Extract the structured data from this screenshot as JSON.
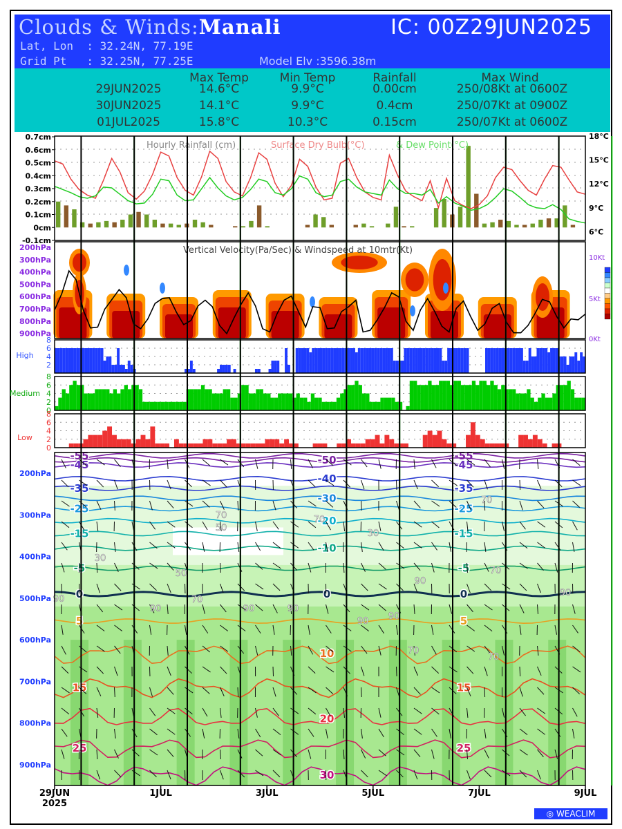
{
  "header": {
    "title_prefix": "Clouds & Winds:",
    "location": "Manali",
    "ic": "IC: 00Z29JUN2025",
    "latlon": "Lat, Lon  : 32.24N, 77.19E",
    "gridpt": "Grid Pt   : 32.25N, 77.25E",
    "elevation": "Model Elv :3596.38m"
  },
  "summary": {
    "columns": [
      "Max Temp",
      "Min Temp",
      "Rainfall",
      "Max Wind"
    ],
    "rows": [
      {
        "date": "29JUN2025",
        "max_temp": "14.6°C",
        "min_temp": "9.9°C",
        "rain": "0.00cm",
        "wind": "250/08Kt at 0600Z"
      },
      {
        "date": "30JUN2025",
        "max_temp": "14.1°C",
        "min_temp": "9.9°C",
        "rain": "0.4cm",
        "wind": "250/07Kt at 0900Z"
      },
      {
        "date": "01JUL2025",
        "max_temp": "15.8°C",
        "min_temp": "10.3°C",
        "rain": "0.15cm",
        "wind": "250/07Kt at 0600Z"
      }
    ]
  },
  "colors": {
    "rain_bar": "#6e9e2a",
    "rain_bar_dark": "#8b5a2b",
    "drybulb": "#e84040",
    "dewpoint": "#22cc22",
    "high_cloud": "#1f3cff",
    "medium_cloud": "#00cc00",
    "low_cloud": "#ee3333",
    "day_line": "#000000",
    "noon_line": "#22cc22"
  },
  "chart_data": [
    {
      "type": "bar",
      "name": "meteogram-rain-temp",
      "title": "Hourly Rainfall (cm)",
      "title2": "Surface Dry Bulb(°C)",
      "title3": "& Dew Point(°C)",
      "y_left_ticks": [
        "0.7cm",
        "0.6cm",
        "0.5cm",
        "0.4cm",
        "0.3cm",
        "0.2cm",
        "0.1cm",
        "0cm",
        "-0.1cm"
      ],
      "y_right_ticks": [
        "18°C",
        "15°C",
        "12°C",
        "9°C",
        "6°C"
      ],
      "ylim_rain": [
        -0.1,
        0.7
      ],
      "ylim_temp": [
        5,
        18
      ],
      "rain": [
        0.2,
        0.17,
        0.14,
        0.04,
        0.03,
        0.04,
        0.05,
        0.04,
        0.06,
        0.1,
        0.12,
        0.1,
        0.06,
        0.03,
        0.03,
        0.02,
        0.03,
        0.06,
        0.04,
        0.02,
        0.0,
        0.0,
        0.01,
        0.01,
        0.05,
        0.17,
        0.01,
        0.0,
        0.0,
        0.0,
        0.0,
        0.02,
        0.1,
        0.08,
        0.02,
        0.0,
        0.0,
        0.02,
        0.03,
        0.01,
        0.0,
        0.03,
        0.16,
        0.01,
        0.01,
        0.0,
        0.0,
        0.15,
        0.22,
        0.1,
        0.16,
        0.63,
        0.26,
        0.03,
        0.04,
        0.06,
        0.05,
        0.02,
        0.02,
        0.03,
        0.06,
        0.07,
        0.07,
        0.17,
        0.02,
        0.0
      ],
      "drybulb": [
        14.9,
        14.5,
        12.6,
        11.3,
        10.6,
        10.2,
        12.5,
        15.2,
        13.5,
        10.9,
        10.1,
        11.1,
        13.2,
        16.0,
        15.5,
        12.8,
        11.2,
        10.6,
        12.9,
        16.1,
        15.2,
        12.3,
        11.0,
        10.5,
        12.8,
        15.9,
        15.1,
        12.1,
        10.4,
        11.8,
        15.1,
        14.2,
        11.6,
        10.0,
        10.2,
        14.6,
        15.2,
        12.8,
        11.0,
        10.3,
        10.0,
        15.6,
        13.1,
        11.1,
        10.4,
        9.9,
        12.4,
        9.0,
        12.7,
        9.9,
        9.3,
        8.9,
        9.4,
        10.5,
        12.8,
        14.1,
        13.8,
        12.4,
        11.2,
        10.6,
        12.6,
        14.3,
        14.1,
        12.5,
        11.0,
        10.7
      ],
      "dewpoint": [
        11.7,
        11.3,
        10.9,
        10.4,
        10.2,
        10.5,
        11.6,
        11.5,
        10.7,
        9.9,
        9.5,
        9.6,
        10.7,
        12.6,
        12.4,
        10.6,
        9.9,
        10.0,
        11.4,
        12.8,
        11.5,
        10.5,
        10.0,
        10.3,
        11.3,
        12.6,
        12.3,
        10.9,
        10.6,
        11.4,
        13.0,
        12.6,
        10.9,
        10.4,
        10.6,
        12.3,
        12.6,
        11.6,
        11.0,
        10.8,
        10.6,
        12.5,
        11.4,
        10.8,
        10.8,
        10.6,
        11.3,
        9.6,
        10.4,
        9.6,
        9.2,
        8.7,
        8.9,
        9.4,
        10.3,
        11.4,
        11.1,
        10.3,
        9.4,
        9.0,
        8.9,
        9.4,
        8.8,
        7.6,
        7.3,
        7.1
      ]
    },
    {
      "type": "heatmap",
      "name": "vertical-velocity",
      "title": "Vertical Velocity(Pa/Sec) & Windspeed at 10mtr(Kt)",
      "y_ticks": [
        "200hPa",
        "300hPa",
        "400hPa",
        "500hPa",
        "600hPa",
        "700hPa",
        "800hPa",
        "900hPa"
      ],
      "y_right_ticks": [
        "10Kt",
        "5Kt",
        "0Kt"
      ],
      "windspeed_kt": [
        3.5,
        5.5,
        8.3,
        7.2,
        3.5,
        1.3,
        1.4,
        3.6,
        4.8,
        6.0,
        5.0,
        1.8,
        1.2,
        2.4,
        4.3,
        4.9,
        5.0,
        3.2,
        1.7,
        2.2,
        4.0,
        4.7,
        3.9,
        1.6,
        0.6,
        2.5,
        4.2,
        5.6,
        4.0,
        1.2,
        0.8,
        3.0,
        4.7,
        5.2,
        3.3,
        1.4,
        3.9,
        3.8,
        1.2,
        1.3,
        3.3,
        3.9,
        4.7,
        0.8,
        1.0,
        2.3,
        3.8,
        5.6,
        5.1,
        2.1,
        1.0,
        3.5,
        4.9,
        3.3,
        1.5,
        0.8,
        3.7,
        4.6,
        2.7,
        1.0,
        1.8,
        3.7,
        4.3,
        2.0,
        0.7,
        0.7,
        1.6,
        3.1,
        4.8,
        4.5,
        2.7,
        1.3,
        2.4,
        2.3,
        3.0
      ],
      "cells": [
        [
          6,
          0.3,
          0.75,
          0.1,
          1
        ],
        [
          9,
          0.2,
          0.45,
          0.1,
          0
        ],
        [
          36,
          0.25,
          0.6,
          0.12,
          0
        ],
        [
          51,
          0.2,
          0.5,
          0.08,
          0
        ],
        [
          83,
          0.2,
          0.55,
          0.1,
          0
        ],
        [
          102,
          0.25,
          0.5,
          0.1,
          0
        ],
        [
          130,
          0.25,
          0.55,
          0.15,
          1
        ],
        [
          150,
          0.15,
          0.4,
          0.1,
          1
        ],
        [
          165,
          0.1,
          0.4,
          0.15,
          0
        ],
        [
          171,
          0.1,
          0.55,
          0.2,
          0
        ],
        [
          158,
          0.25,
          0.6,
          0.15,
          0
        ],
        [
          165,
          0.1,
          0.4,
          0.15,
          0
        ],
        [
          176,
          0.05,
          0.5,
          0.1,
          0
        ]
      ],
      "colorbar": [
        "#1f3cff",
        "#3388ff",
        "#88ccff",
        "#ccffcc",
        "#ffffff",
        "#ffcc88",
        "#ff9900",
        "#ff5500",
        "#dd2200",
        "#aa0000"
      ]
    },
    {
      "type": "bar",
      "name": "high-cloud",
      "label": "High",
      "y_ticks": [
        "8",
        "6",
        "4",
        "2"
      ],
      "ylim": [
        0,
        8
      ],
      "values": [
        6,
        6,
        6,
        6,
        6,
        6,
        6,
        6,
        6,
        6,
        6,
        6,
        6,
        6,
        6,
        6,
        6,
        6,
        3,
        4,
        4,
        2,
        2,
        6,
        2,
        2,
        1,
        3,
        2,
        1,
        0,
        0,
        0,
        0,
        0,
        0,
        0,
        0,
        0,
        0,
        0,
        0,
        0,
        0,
        0,
        0,
        0,
        0,
        1,
        1,
        3,
        1,
        0,
        0,
        0,
        0,
        0,
        0,
        0,
        0,
        1,
        2,
        2,
        2,
        2,
        0,
        1,
        0,
        0,
        0,
        0,
        0,
        0,
        0,
        1,
        1,
        0,
        0,
        0,
        1,
        3,
        3,
        3,
        0,
        0,
        6,
        2,
        0,
        0,
        6,
        6,
        6,
        6,
        6,
        5,
        6,
        6,
        6,
        6,
        6,
        6,
        6,
        6,
        6,
        6,
        6,
        6,
        6,
        6,
        6,
        6,
        5,
        6,
        6,
        6,
        6,
        6,
        6,
        6,
        6,
        6,
        6,
        6,
        6,
        6,
        3,
        3,
        3,
        3,
        6,
        6,
        6,
        6,
        6,
        6,
        6,
        6,
        6,
        6,
        6,
        6,
        6,
        6,
        3,
        3,
        6,
        6,
        6,
        6,
        6,
        6,
        6,
        6,
        0,
        0,
        0,
        0,
        0,
        0,
        6,
        6,
        6,
        6,
        6,
        6,
        6,
        6,
        6,
        6,
        6,
        6,
        6,
        6,
        3,
        3,
        6,
        4,
        4,
        6,
        6,
        6,
        6,
        5,
        6,
        6,
        6,
        4,
        4,
        4,
        2,
        4,
        4,
        5,
        3,
        5,
        4
      ]
    },
    {
      "type": "bar",
      "name": "medium-cloud",
      "label": "Medium",
      "y_ticks": [
        "8",
        "6",
        "4",
        "2",
        "0"
      ],
      "ylim": [
        0,
        8
      ],
      "values": [
        1,
        3,
        5,
        4,
        6,
        7,
        6,
        6,
        4,
        4,
        4,
        5,
        5,
        5,
        5,
        4,
        5,
        4,
        5,
        6,
        5,
        6,
        6,
        5,
        2,
        2,
        2,
        2,
        2,
        2,
        2,
        2,
        2,
        2,
        2,
        2,
        5,
        5,
        5,
        5,
        6,
        5,
        5,
        4,
        4,
        4,
        5,
        5,
        3,
        3,
        4,
        6,
        6,
        4,
        4,
        5,
        5,
        4,
        4,
        3,
        3,
        4,
        4,
        4,
        4,
        3,
        4,
        3,
        3,
        2,
        4,
        3,
        3,
        2,
        2,
        2,
        2,
        3,
        4,
        5,
        6,
        6,
        7,
        6,
        4,
        4,
        2,
        2,
        2,
        3,
        3,
        3,
        3,
        2,
        2,
        0,
        1,
        7,
        7,
        6,
        6,
        6,
        7,
        6,
        6,
        7,
        7,
        7,
        6,
        7,
        7,
        6,
        6,
        6,
        7,
        6,
        7,
        7,
        6,
        7,
        6,
        5,
        6,
        5,
        5,
        5,
        4,
        4,
        4,
        5,
        3,
        2,
        3,
        4,
        3,
        3,
        4,
        6,
        6,
        6,
        7,
        5,
        3,
        3,
        3
      ]
    },
    {
      "type": "bar",
      "name": "low-cloud",
      "label": "Low",
      "y_ticks": [
        "8",
        "6",
        "4",
        "2",
        "0"
      ],
      "ylim": [
        0,
        8
      ],
      "values": [
        0,
        0,
        0,
        1,
        1,
        1,
        2,
        3,
        3,
        3,
        4,
        5,
        3,
        2,
        2,
        2,
        1,
        2,
        3,
        2,
        5,
        1,
        1,
        1,
        0,
        2,
        1,
        1,
        1,
        1,
        1,
        2,
        2,
        1,
        1,
        1,
        2,
        2,
        1,
        1,
        1,
        1,
        1,
        1,
        2,
        2,
        2,
        1,
        2,
        1,
        1,
        0,
        0,
        0,
        1,
        1,
        1,
        0,
        0,
        1,
        1,
        2,
        1,
        1,
        1,
        2,
        2,
        3,
        1,
        3,
        2,
        1,
        1,
        1,
        0,
        0,
        0,
        3,
        4,
        3,
        4,
        2,
        1,
        1,
        0,
        0,
        3,
        6,
        3,
        2,
        1,
        1,
        1,
        1,
        1,
        0,
        0,
        3,
        3,
        2,
        3,
        2,
        1,
        0,
        1,
        1,
        0,
        0,
        0,
        0,
        0
      ]
    },
    {
      "type": "contour",
      "name": "upper-air",
      "y_ticks": [
        "200hPa",
        "300hPa",
        "400hPa",
        "500hPa",
        "600hPa",
        "700hPa",
        "800hPa",
        "900hPa"
      ],
      "ylim": [
        950,
        150
      ],
      "isotherms": [
        {
          "t": -55,
          "p": 158,
          "color": "#7a1fa2"
        },
        {
          "t": -50,
          "p": 168,
          "color": "#7a1fa2"
        },
        {
          "t": -45,
          "p": 180,
          "color": "#6a2fbf"
        },
        {
          "t": -40,
          "p": 213,
          "color": "#2a3bd0"
        },
        {
          "t": -35,
          "p": 236,
          "color": "#2a3bd0"
        },
        {
          "t": -30,
          "p": 260,
          "color": "#1a88dd"
        },
        {
          "t": -25,
          "p": 285,
          "color": "#1a99dd"
        },
        {
          "t": -20,
          "p": 314,
          "color": "#10b0cc"
        },
        {
          "t": -15,
          "p": 345,
          "color": "#10b0aa"
        },
        {
          "t": -10,
          "p": 380,
          "color": "#10a888"
        },
        {
          "t": -5,
          "p": 428,
          "color": "#109966"
        },
        {
          "t": 0,
          "p": 490,
          "color": "#103050"
        },
        {
          "t": 5,
          "p": 555,
          "color": "#e8a020"
        },
        {
          "t": 10,
          "p": 633,
          "color": "#e87020"
        },
        {
          "t": 15,
          "p": 715,
          "color": "#e85020"
        },
        {
          "t": 20,
          "p": 790,
          "color": "#e83040"
        },
        {
          "t": 25,
          "p": 860,
          "color": "#d02060"
        },
        {
          "t": 30,
          "p": 925,
          "color": "#c01080"
        }
      ],
      "rh_labels": [
        "90",
        "70",
        "50",
        "30",
        "90",
        "70",
        "90",
        "90",
        "70",
        "90",
        "90",
        "50",
        "30",
        "90",
        "70",
        "70",
        "90",
        "70",
        "70"
      ]
    }
  ],
  "x_axis": {
    "labels": [
      {
        "text": "29JUN",
        "sub": "2025"
      },
      {
        "text": "1JUL",
        "sub": ""
      },
      {
        "text": "3JUL",
        "sub": ""
      },
      {
        "text": "5JUL",
        "sub": ""
      },
      {
        "text": "7JUL",
        "sub": ""
      },
      {
        "text": "9JUL",
        "sub": ""
      }
    ]
  },
  "footer": {
    "logo": "WEACLIM"
  }
}
